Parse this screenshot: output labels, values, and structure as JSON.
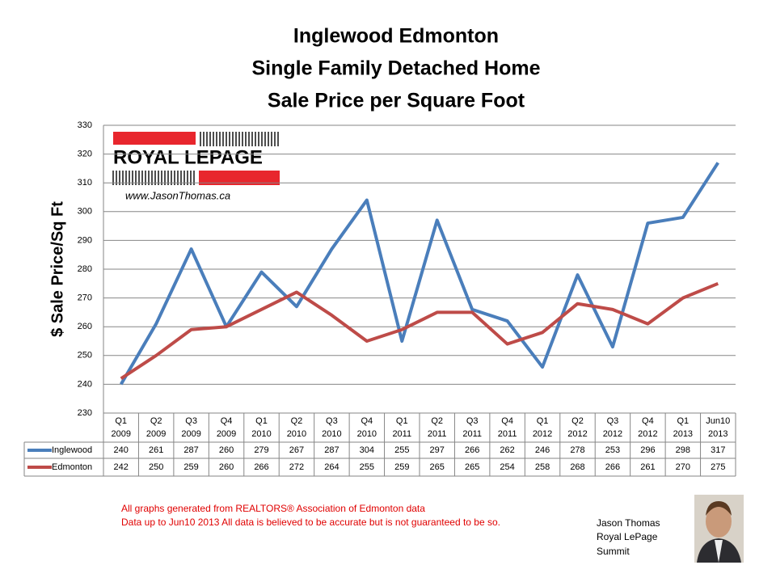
{
  "chart_data": {
    "type": "line",
    "title": [
      "Inglewood Edmonton",
      "Single Family Detached Home",
      "Sale Price per Square Foot"
    ],
    "y_label": "$ Sale Price/Sq Ft",
    "categories": [
      [
        "Q1",
        "2009"
      ],
      [
        "Q2",
        "2009"
      ],
      [
        "Q3",
        "2009"
      ],
      [
        "Q4",
        "2009"
      ],
      [
        "Q1",
        "2010"
      ],
      [
        "Q2",
        "2010"
      ],
      [
        "Q3",
        "2010"
      ],
      [
        "Q4",
        "2010"
      ],
      [
        "Q1",
        "2011"
      ],
      [
        "Q2",
        "2011"
      ],
      [
        "Q3",
        "2011"
      ],
      [
        "Q4",
        "2011"
      ],
      [
        "Q1",
        "2012"
      ],
      [
        "Q2",
        "2012"
      ],
      [
        "Q3",
        "2012"
      ],
      [
        "Q4",
        "2012"
      ],
      [
        "Q1",
        "2013"
      ],
      [
        "Jun10",
        "2013"
      ]
    ],
    "series": [
      {
        "name": "Inglewood",
        "color": "#4a7ebb",
        "values": [
          240,
          261,
          287,
          260,
          279,
          267,
          287,
          304,
          255,
          297,
          266,
          262,
          246,
          278,
          253,
          296,
          298,
          317
        ]
      },
      {
        "name": "Edmonton",
        "color": "#be4b48",
        "values": [
          242,
          250,
          259,
          260,
          266,
          272,
          264,
          255,
          259,
          265,
          265,
          254,
          258,
          268,
          266,
          261,
          270,
          275
        ]
      }
    ],
    "ylim": [
      230,
      330
    ],
    "yticks": [
      230,
      240,
      250,
      260,
      270,
      280,
      290,
      300,
      310,
      320,
      330
    ],
    "grid": true
  },
  "logo": {
    "brand": "ROYAL LEPAGE",
    "website": "www.JasonThomas.ca"
  },
  "notes": [
    "All graphs generated from REALTORS® Association of Edmonton data",
    "Data up to  Jun10 2013  All data is believed to be accurate but is not guaranteed to be so."
  ],
  "signature": [
    "Jason Thomas",
    "Royal LePage",
    "Summit"
  ]
}
